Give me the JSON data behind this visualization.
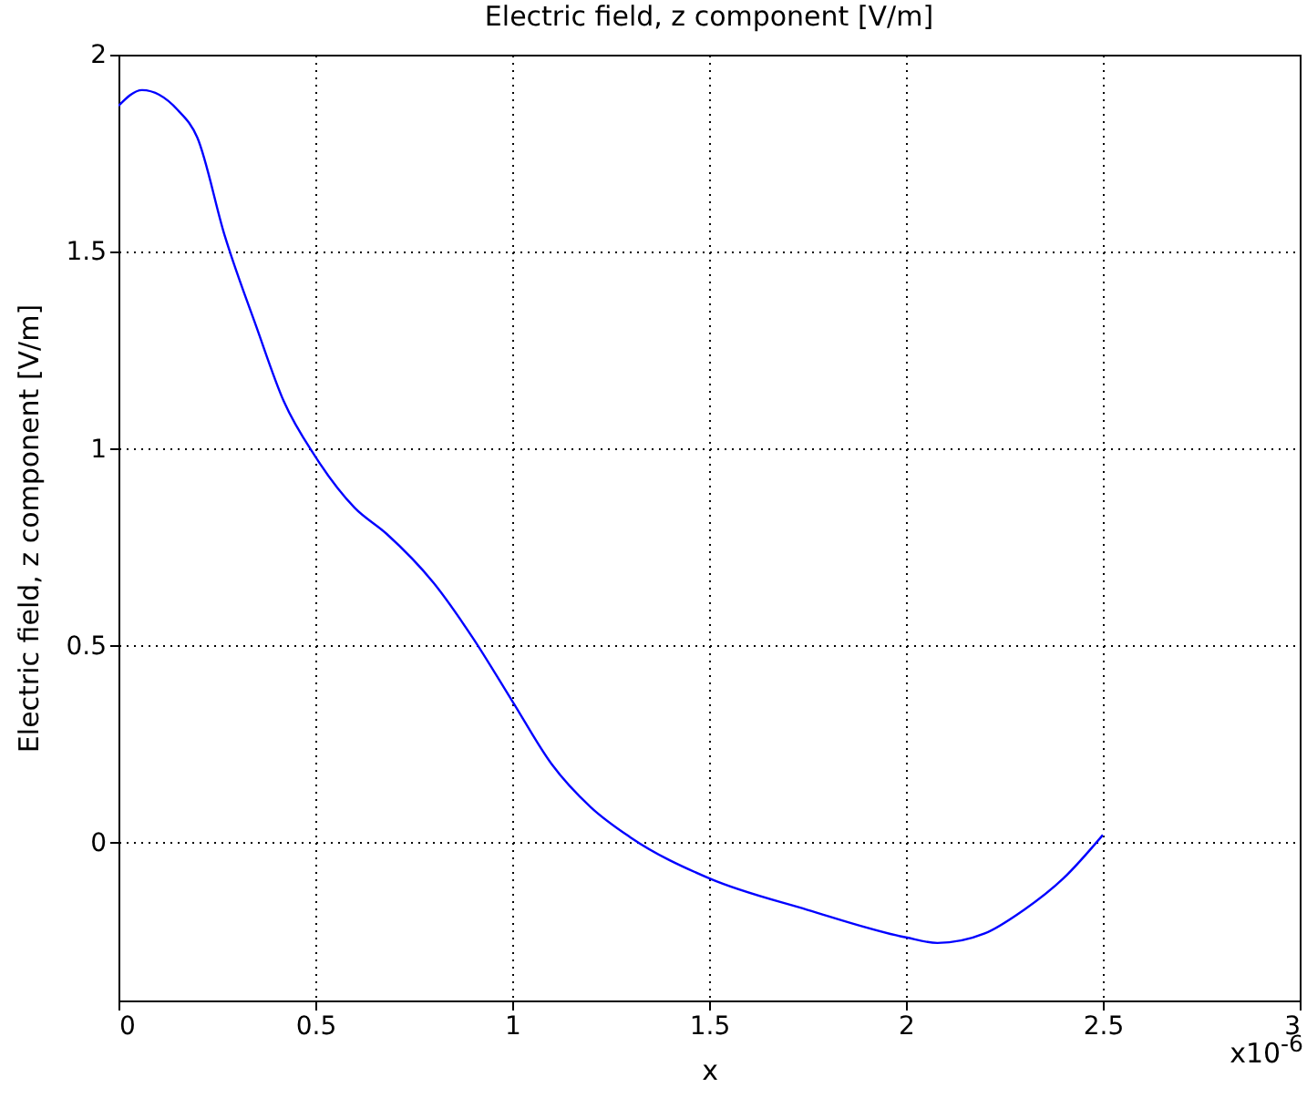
{
  "chart_data": {
    "type": "line",
    "title": "Electric field, z component [V/m]",
    "xlabel": "x",
    "ylabel": "Electric field, z component [V/m]",
    "annotations": [
      "x10$^{-6}$"
    ],
    "xlim": [
      0,
      3
    ],
    "xticks": [
      0,
      0.5,
      1,
      1.5,
      2,
      2.5,
      3
    ],
    "ylim": [
      -0.4,
      2
    ],
    "yticks": [
      0,
      0.5,
      1,
      1.5,
      2
    ],
    "grid": true,
    "line_style": "solid",
    "series": [
      {
        "color": "#0000ff",
        "x": [
          0,
          0.06,
          0.15,
          0.2,
          0.27,
          0.35,
          0.42,
          0.5,
          0.6,
          0.68,
          0.8,
          0.9,
          1.0,
          1.1,
          1.2,
          1.3,
          1.5,
          1.75,
          2.0,
          2.08,
          2.2,
          2.3,
          2.4,
          2.5
        ],
        "values": [
          1.87,
          1.91,
          1.86,
          1.79,
          1.54,
          1.31,
          1.12,
          0.98,
          0.85,
          0.785,
          0.66,
          0.52,
          0.36,
          0.2,
          0.09,
          0.014,
          -0.09,
          -0.17,
          -0.24,
          -0.254,
          -0.23,
          -0.17,
          -0.09,
          0.02
        ]
      }
    ]
  }
}
